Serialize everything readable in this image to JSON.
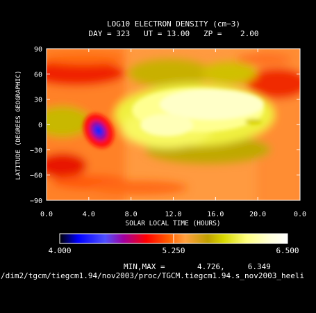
{
  "title": "LOG10 ELECTRON DENSITY (cm−3)",
  "subtitle": "DAY = 323   UT = 13.00   ZP =    2.00",
  "minmax_text": "MIN,MAX =       4.726,     6.349",
  "footer_path": "/dim2/tgcm/tiegcm1.94/nov2003/proc/TGCM.tiegcm1.94.s_nov2003_heeli",
  "colorbar": {
    "min_label": "4.000",
    "mid_label": "5.250",
    "max_label": "6.500",
    "stops": [
      "#000000",
      "#0000ff",
      "#5555ff",
      "#aa00aa",
      "#ff0000",
      "#ff5a00",
      "#ffa040",
      "#c8a000",
      "#d0d000",
      "#ffff80",
      "#ffffd8",
      "#ffffff"
    ]
  },
  "chart_data": {
    "type": "heatmap",
    "title": "LOG10 ELECTRON DENSITY (cm−3)",
    "xlabel": "SOLAR LOCAL TIME (HOURS)",
    "ylabel": "LATITUDE (DEGREES GEOGRAPHIC)",
    "xlim": [
      0,
      24
    ],
    "ylim": [
      -90,
      90
    ],
    "x_ticks": [
      "0.0",
      "4.0",
      "8.0",
      "12.0",
      "16.0",
      "20.0",
      "0.0"
    ],
    "y_ticks": [
      "90",
      "60",
      "30",
      "0",
      "−30",
      "−60",
      "−90"
    ],
    "value_range": [
      4.0,
      6.5
    ],
    "min": 4.726,
    "max": 6.349,
    "features": [
      {
        "name": "equatorial_daytime_max",
        "slt": 13.5,
        "lat": 10,
        "value": 6.33
      },
      {
        "name": "evening_trough",
        "slt": 4.8,
        "lat": -5,
        "value": 4.73
      },
      {
        "name": "nightside_north_max",
        "slt": 2.5,
        "lat": 60,
        "value": 5.35
      },
      {
        "name": "nightside_south_max",
        "slt": 2.0,
        "lat": -45,
        "value": 5.35
      },
      {
        "name": "postdusk_north",
        "slt": 22.0,
        "lat": 55,
        "value": 5.4
      }
    ]
  }
}
